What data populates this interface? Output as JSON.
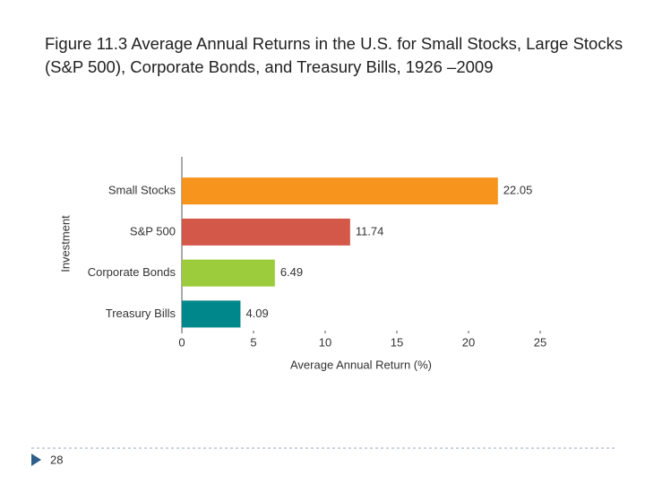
{
  "chart_data": {
    "type": "bar",
    "orientation": "horizontal",
    "title": "Figure 11.3  Average Annual Returns in the U.S. for Small Stocks, Large Stocks (S&P 500), Corporate Bonds, and Treasury Bills, 1926 –2009",
    "x_label": "Average Annual Return (%)",
    "y_label": "Investment",
    "categories": [
      "Small Stocks",
      "S&P 500",
      "Corporate Bonds",
      "Treasury Bills"
    ],
    "values": [
      22.05,
      11.74,
      6.49,
      4.09
    ],
    "colors": [
      "#f7941d",
      "#d4584a",
      "#9ccb3b",
      "#00878c"
    ],
    "xlim": [
      0,
      25
    ],
    "xticks": [
      0,
      5,
      10,
      15,
      20,
      25
    ],
    "grid": false
  },
  "slide": {
    "page_number": "28"
  }
}
